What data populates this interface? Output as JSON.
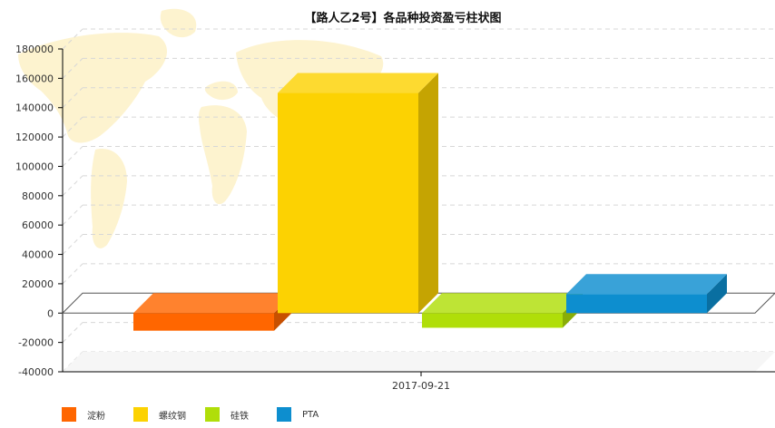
{
  "chart_data": {
    "type": "bar",
    "title": "【路人乙2号】各品种投资盈亏柱状图",
    "categories": [
      "2017-09-21"
    ],
    "series": [
      {
        "name": "淀粉",
        "values": [
          -12000
        ],
        "color": "#ff6600"
      },
      {
        "name": "螺纹钢",
        "values": [
          150000
        ],
        "color": "#fcd202"
      },
      {
        "name": "硅铁",
        "values": [
          -10000
        ],
        "color": "#b0de09"
      },
      {
        "name": "PTA",
        "values": [
          13000
        ],
        "color": "#0d8ecf"
      }
    ],
    "ylim": [
      -40000,
      180000
    ],
    "yticks": [
      "180000",
      "160000",
      "140000",
      "120000",
      "100000",
      "80000",
      "60000",
      "40000",
      "20000",
      "0",
      "-20000",
      "-40000"
    ],
    "grid": true,
    "legend": "bottom-left",
    "three_d": true
  }
}
